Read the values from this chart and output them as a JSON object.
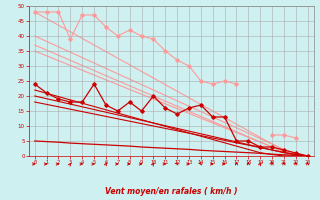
{
  "xlabel": "Vent moyen/en rafales ( km/h )",
  "x": [
    0,
    1,
    2,
    3,
    4,
    5,
    6,
    7,
    8,
    9,
    10,
    11,
    12,
    13,
    14,
    15,
    16,
    17,
    18,
    19,
    20,
    21,
    22,
    23
  ],
  "light_jagged": [
    48,
    48,
    48,
    39,
    47,
    47,
    43,
    40,
    42,
    40,
    39,
    35,
    32,
    30,
    25,
    24,
    25,
    24,
    null,
    null,
    7,
    7,
    6,
    null
  ],
  "light_trend1": [
    48,
    45.8,
    43.6,
    41.4,
    39.2,
    37.0,
    34.8,
    32.6,
    30.4,
    28.2,
    26.0,
    23.8,
    21.6,
    19.4,
    17.2,
    15.0,
    12.8,
    10.6,
    8.4,
    6.2,
    4.0,
    1.8,
    0,
    0
  ],
  "light_trend2": [
    40,
    38.2,
    36.4,
    34.6,
    32.8,
    31.0,
    29.2,
    27.4,
    25.6,
    23.8,
    22.0,
    20.2,
    18.4,
    16.6,
    14.8,
    13.0,
    11.2,
    9.4,
    7.6,
    5.8,
    4.0,
    2.2,
    0.4,
    0
  ],
  "light_trend3": [
    37,
    35.3,
    33.6,
    31.9,
    30.2,
    28.5,
    26.8,
    25.1,
    23.4,
    21.7,
    20.0,
    18.3,
    16.6,
    14.9,
    13.2,
    11.5,
    9.8,
    8.1,
    6.4,
    4.7,
    3.0,
    1.3,
    0,
    0
  ],
  "light_trend4": [
    35,
    33.4,
    31.8,
    30.2,
    28.6,
    27.0,
    25.4,
    23.8,
    22.2,
    20.6,
    19.0,
    17.4,
    15.8,
    14.2,
    12.6,
    11.0,
    9.4,
    7.8,
    6.2,
    4.6,
    3.0,
    1.4,
    0,
    0
  ],
  "dark_jagged": [
    24,
    21,
    19,
    18,
    18,
    24,
    17,
    15,
    18,
    15,
    20,
    16,
    14,
    16,
    17,
    13,
    13,
    5,
    5,
    3,
    3,
    2,
    1,
    0
  ],
  "dark_trend1": [
    22,
    20.9,
    19.8,
    18.7,
    17.6,
    16.5,
    15.4,
    14.3,
    13.2,
    12.1,
    11.0,
    9.9,
    8.8,
    7.7,
    6.6,
    5.5,
    4.4,
    3.3,
    2.2,
    1.1,
    0.5,
    0,
    0,
    0
  ],
  "dark_trend2": [
    20,
    19.1,
    18.2,
    17.3,
    16.4,
    15.5,
    14.6,
    13.7,
    12.8,
    11.9,
    11.0,
    10.1,
    9.2,
    8.3,
    7.4,
    6.5,
    5.6,
    4.7,
    3.8,
    2.9,
    2.0,
    1.1,
    0.5,
    0
  ],
  "dark_trend3": [
    18,
    17.2,
    16.4,
    15.6,
    14.8,
    14.0,
    13.2,
    12.4,
    11.6,
    10.8,
    10.0,
    9.2,
    8.4,
    7.6,
    6.8,
    6.0,
    5.2,
    4.4,
    3.6,
    2.8,
    2.0,
    1.2,
    0.5,
    0
  ],
  "dark_trend4": [
    5,
    4.8,
    4.6,
    4.3,
    4.1,
    3.9,
    3.7,
    3.5,
    3.3,
    3.0,
    2.8,
    2.6,
    2.4,
    2.2,
    1.9,
    1.7,
    1.5,
    1.3,
    1.1,
    0.9,
    0.6,
    0.4,
    0.2,
    0
  ],
  "arrow_angles": [
    0,
    0,
    0,
    30,
    0,
    0,
    45,
    0,
    0,
    0,
    30,
    0,
    -30,
    0,
    -30,
    0,
    0,
    90,
    90,
    45,
    90,
    90,
    90,
    90
  ],
  "bg_color": "#cff0f0",
  "grid_color": "#aaaaaa",
  "light_color": "#ff9999",
  "dark_color": "#cc0000",
  "ylim": [
    0,
    50
  ],
  "xlim": [
    -0.5,
    23
  ]
}
